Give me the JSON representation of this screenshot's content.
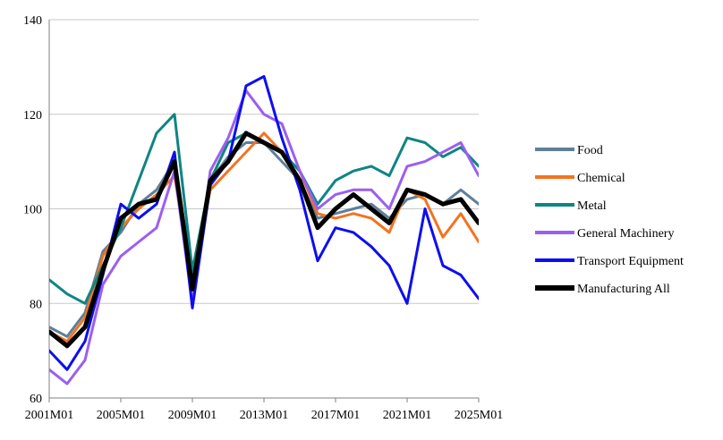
{
  "chart_data": {
    "type": "line",
    "title": "",
    "xlabel": "",
    "ylabel": "",
    "x_ticks": [
      "2001M01",
      "2005M01",
      "2009M01",
      "2013M01",
      "2017M01",
      "2021M01",
      "2025M01"
    ],
    "y_ticks": [
      60,
      80,
      100,
      120,
      140
    ],
    "ylim": [
      60,
      140
    ],
    "xlim": [
      "2001M01",
      "2025M01"
    ],
    "grid": "horizontal",
    "legend_position": "right",
    "series": [
      {
        "name": "Food",
        "color": "#5f7f99",
        "width": 3,
        "x": [
          "2001M01",
          "2002M01",
          "2003M01",
          "2004M01",
          "2005M01",
          "2006M01",
          "2007M01",
          "2008M01",
          "2009M01",
          "2010M01",
          "2011M01",
          "2012M01",
          "2013M01",
          "2014M01",
          "2015M01",
          "2016M01",
          "2017M01",
          "2018M01",
          "2019M01",
          "2020M01",
          "2021M01",
          "2022M01",
          "2023M01",
          "2024M01",
          "2025M01"
        ],
        "values": [
          75,
          73,
          78,
          91,
          95,
          101,
          104,
          110,
          86,
          106,
          111,
          114,
          114,
          110,
          106,
          98,
          99,
          100,
          101,
          98,
          102,
          103,
          101,
          104,
          101
        ]
      },
      {
        "name": "Chemical",
        "color": "#f4731f",
        "width": 3,
        "x": [
          "2001M01",
          "2002M01",
          "2003M01",
          "2004M01",
          "2005M01",
          "2006M01",
          "2007M01",
          "2008M01",
          "2009M01",
          "2010M01",
          "2011M01",
          "2012M01",
          "2013M01",
          "2014M01",
          "2015M01",
          "2016M01",
          "2017M01",
          "2018M01",
          "2019M01",
          "2020M01",
          "2021M01",
          "2022M01",
          "2023M01",
          "2024M01",
          "2025M01"
        ],
        "values": [
          74,
          72,
          77,
          90,
          96,
          100,
          103,
          107,
          84,
          104,
          108,
          112,
          116,
          112,
          108,
          99,
          98,
          99,
          98,
          95,
          104,
          102,
          94,
          99,
          93
        ]
      },
      {
        "name": "Metal",
        "color": "#0f8583",
        "width": 3,
        "x": [
          "2001M01",
          "2002M01",
          "2003M01",
          "2004M01",
          "2005M01",
          "2006M01",
          "2007M01",
          "2008M01",
          "2009M01",
          "2010M01",
          "2011M01",
          "2012M01",
          "2013M01",
          "2014M01",
          "2015M01",
          "2016M01",
          "2017M01",
          "2018M01",
          "2019M01",
          "2020M01",
          "2021M01",
          "2022M01",
          "2023M01",
          "2024M01",
          "2025M01"
        ],
        "values": [
          85,
          82,
          80,
          88,
          96,
          106,
          116,
          120,
          87,
          106,
          114,
          116,
          114,
          112,
          108,
          101,
          106,
          108,
          109,
          107,
          115,
          114,
          111,
          113,
          109
        ]
      },
      {
        "name": "General Machinery",
        "color": "#9b5ff0",
        "width": 3,
        "x": [
          "2001M01",
          "2002M01",
          "2003M01",
          "2004M01",
          "2005M01",
          "2006M01",
          "2007M01",
          "2008M01",
          "2009M01",
          "2010M01",
          "2011M01",
          "2012M01",
          "2013M01",
          "2014M01",
          "2015M01",
          "2016M01",
          "2017M01",
          "2018M01",
          "2019M01",
          "2020M01",
          "2021M01",
          "2022M01",
          "2023M01",
          "2024M01",
          "2025M01"
        ],
        "values": [
          66,
          63,
          68,
          84,
          90,
          93,
          96,
          108,
          80,
          108,
          115,
          125,
          120,
          118,
          108,
          100,
          103,
          104,
          104,
          100,
          109,
          110,
          112,
          114,
          107
        ]
      },
      {
        "name": "Transport Equipment",
        "color": "#0d0ef0",
        "width": 3,
        "x": [
          "2001M01",
          "2002M01",
          "2003M01",
          "2004M01",
          "2005M01",
          "2006M01",
          "2007M01",
          "2008M01",
          "2009M01",
          "2010M01",
          "2011M01",
          "2012M01",
          "2013M01",
          "2014M01",
          "2015M01",
          "2016M01",
          "2017M01",
          "2018M01",
          "2019M01",
          "2020M01",
          "2021M01",
          "2022M01",
          "2023M01",
          "2024M01",
          "2025M01"
        ],
        "values": [
          70,
          66,
          72,
          86,
          101,
          98,
          101,
          112,
          79,
          105,
          110,
          126,
          128,
          115,
          104,
          89,
          96,
          95,
          92,
          88,
          80,
          100,
          88,
          86,
          81
        ]
      },
      {
        "name": "Manufacturing All",
        "color": "#000000",
        "width": 5,
        "x": [
          "2001M01",
          "2002M01",
          "2003M01",
          "2004M01",
          "2005M01",
          "2006M01",
          "2007M01",
          "2008M01",
          "2009M01",
          "2010M01",
          "2011M01",
          "2012M01",
          "2013M01",
          "2014M01",
          "2015M01",
          "2016M01",
          "2017M01",
          "2018M01",
          "2019M01",
          "2020M01",
          "2021M01",
          "2022M01",
          "2023M01",
          "2024M01",
          "2025M01"
        ],
        "values": [
          74,
          71,
          75,
          87,
          98,
          101,
          102,
          110,
          83,
          106,
          110,
          116,
          114,
          112,
          106,
          96,
          100,
          103,
          100,
          97,
          104,
          103,
          101,
          102,
          97
        ]
      }
    ]
  }
}
